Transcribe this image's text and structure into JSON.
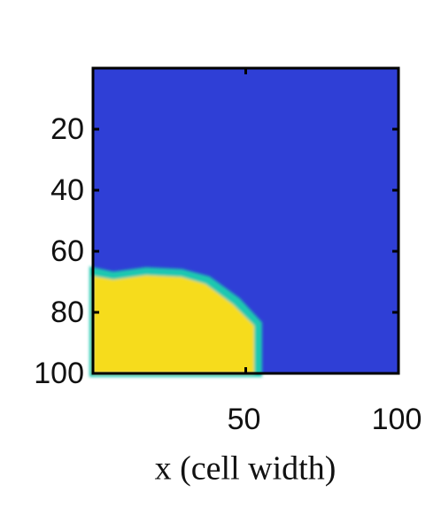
{
  "chart_data": {
    "type": "heatmap",
    "xlabel": "x (cell width)",
    "xlim": [
      0,
      100
    ],
    "xticks": [
      50,
      100
    ],
    "ylim": [
      0,
      100
    ],
    "yticks": [
      20,
      40,
      60,
      80,
      100
    ],
    "y_inverted": true,
    "colors": {
      "low": "#2f3fd6",
      "edge": "#1fc8b0",
      "high": "#f6dc1c"
    }
  }
}
